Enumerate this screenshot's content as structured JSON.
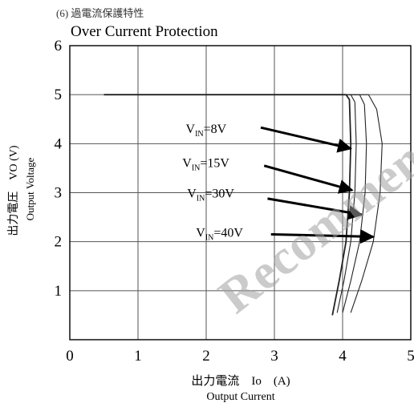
{
  "caption": "(6) 過電流保護特性",
  "chart_data": {
    "type": "line",
    "title": "Over Current Protection",
    "ylabel_jp": "出力電圧　VO (V)",
    "ylabel_en": "Output Voltage",
    "xlabel_jp": "出力電流　Io　(A)",
    "xlabel_en": "Output Current",
    "xlim": [
      0,
      5
    ],
    "ylim": [
      0,
      6
    ],
    "xticks": [
      "0",
      "1",
      "2",
      "3",
      "4",
      "5"
    ],
    "yticks": [
      "1",
      "2",
      "3",
      "4",
      "5",
      "6"
    ],
    "grid": true,
    "series": [
      {
        "name": "VIN=8V",
        "label_main": "V",
        "label_sub": "IN",
        "label_rest": "=8V",
        "arrow_to": [
          4.12,
          3.9
        ],
        "x": [
          0.5,
          4.05,
          4.1,
          4.12,
          4.1,
          4.05,
          3.95,
          3.85
        ],
        "y": [
          5.0,
          5.0,
          4.9,
          4.0,
          3.0,
          2.0,
          1.2,
          0.5
        ]
      },
      {
        "name": "VIN=15V",
        "label_main": "V",
        "label_sub": "IN",
        "label_rest": "=15V",
        "arrow_to": [
          4.14,
          3.05
        ],
        "x": [
          0.5,
          4.12,
          4.18,
          4.2,
          4.18,
          4.12,
          4.02,
          3.92
        ],
        "y": [
          5.0,
          5.0,
          4.85,
          4.0,
          3.0,
          2.0,
          1.2,
          0.55
        ]
      },
      {
        "name": "VIN=30V",
        "label_main": "V",
        "label_sub": "IN",
        "label_rest": "=30V",
        "arrow_to": [
          4.28,
          2.55
        ],
        "x": [
          0.5,
          4.25,
          4.32,
          4.35,
          4.33,
          4.25,
          4.12,
          4.0
        ],
        "y": [
          5.0,
          5.0,
          4.8,
          4.0,
          3.0,
          2.0,
          1.2,
          0.55
        ]
      },
      {
        "name": "VIN=40V",
        "label_main": "V",
        "label_sub": "IN",
        "label_rest": "=40V",
        "arrow_to": [
          4.45,
          2.1
        ],
        "x": [
          0.5,
          4.38,
          4.5,
          4.58,
          4.55,
          4.45,
          4.28,
          4.12
        ],
        "y": [
          5.0,
          5.0,
          4.7,
          4.0,
          3.0,
          2.0,
          1.2,
          0.55
        ]
      }
    ]
  },
  "watermark": "Recommended"
}
